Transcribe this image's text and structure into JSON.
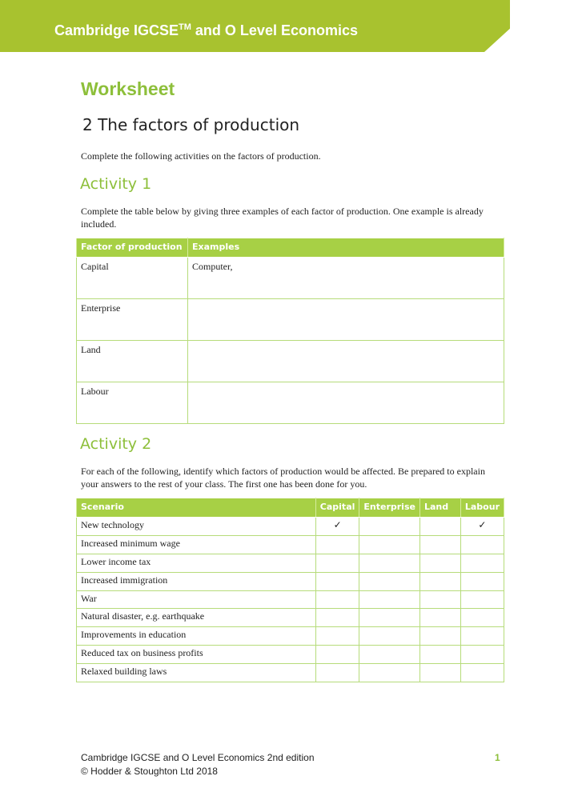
{
  "header": {
    "title": "Cambridge IGCSE",
    "tm": "TM",
    "title_rest": " and O Level Economics"
  },
  "heading": "Worksheet",
  "subtitle": "2 The factors of production",
  "intro": "Complete the following activities on the factors of production.",
  "activity1": {
    "title": "Activity 1",
    "instructions": "Complete the table below by giving three examples of each factor of production. One example is already included.",
    "columns": [
      "Factor of production",
      "Examples"
    ],
    "rows": [
      {
        "factor": "Capital",
        "examples": "Computer,"
      },
      {
        "factor": "Enterprise",
        "examples": ""
      },
      {
        "factor": "Land",
        "examples": ""
      },
      {
        "factor": "Labour",
        "examples": ""
      }
    ]
  },
  "activity2": {
    "title": "Activity 2",
    "instructions": "For each of the following, identify which factors of production would be affected. Be prepared to explain your answers to the rest of your class. The first one has been done for you.",
    "columns": [
      "Scenario",
      "Capital",
      "Enterprise",
      "Land",
      "Labour"
    ],
    "rows": [
      {
        "scenario": "New technology",
        "capital": "✓",
        "enterprise": "",
        "land": "",
        "labour": "✓"
      },
      {
        "scenario": "Increased minimum wage",
        "capital": "",
        "enterprise": "",
        "land": "",
        "labour": ""
      },
      {
        "scenario": "Lower income tax",
        "capital": "",
        "enterprise": "",
        "land": "",
        "labour": ""
      },
      {
        "scenario": "Increased immigration",
        "capital": "",
        "enterprise": "",
        "land": "",
        "labour": ""
      },
      {
        "scenario": "War",
        "capital": "",
        "enterprise": "",
        "land": "",
        "labour": ""
      },
      {
        "scenario": "Natural disaster, e.g. earthquake",
        "capital": "",
        "enterprise": "",
        "land": "",
        "labour": ""
      },
      {
        "scenario": "Improvements in education",
        "capital": "",
        "enterprise": "",
        "land": "",
        "labour": ""
      },
      {
        "scenario": "Reduced tax on business profits",
        "capital": "",
        "enterprise": "",
        "land": "",
        "labour": ""
      },
      {
        "scenario": "Relaxed building laws",
        "capital": "",
        "enterprise": "",
        "land": "",
        "labour": ""
      }
    ]
  },
  "footer": {
    "line1": "Cambridge IGCSE and O Level Economics 2nd edition",
    "line2": "© Hodder & Stoughton Ltd 2018",
    "page": "1"
  },
  "colors": {
    "banner": "#a8c22f",
    "accent": "#8dbf3a",
    "table_header": "#a7d045"
  }
}
